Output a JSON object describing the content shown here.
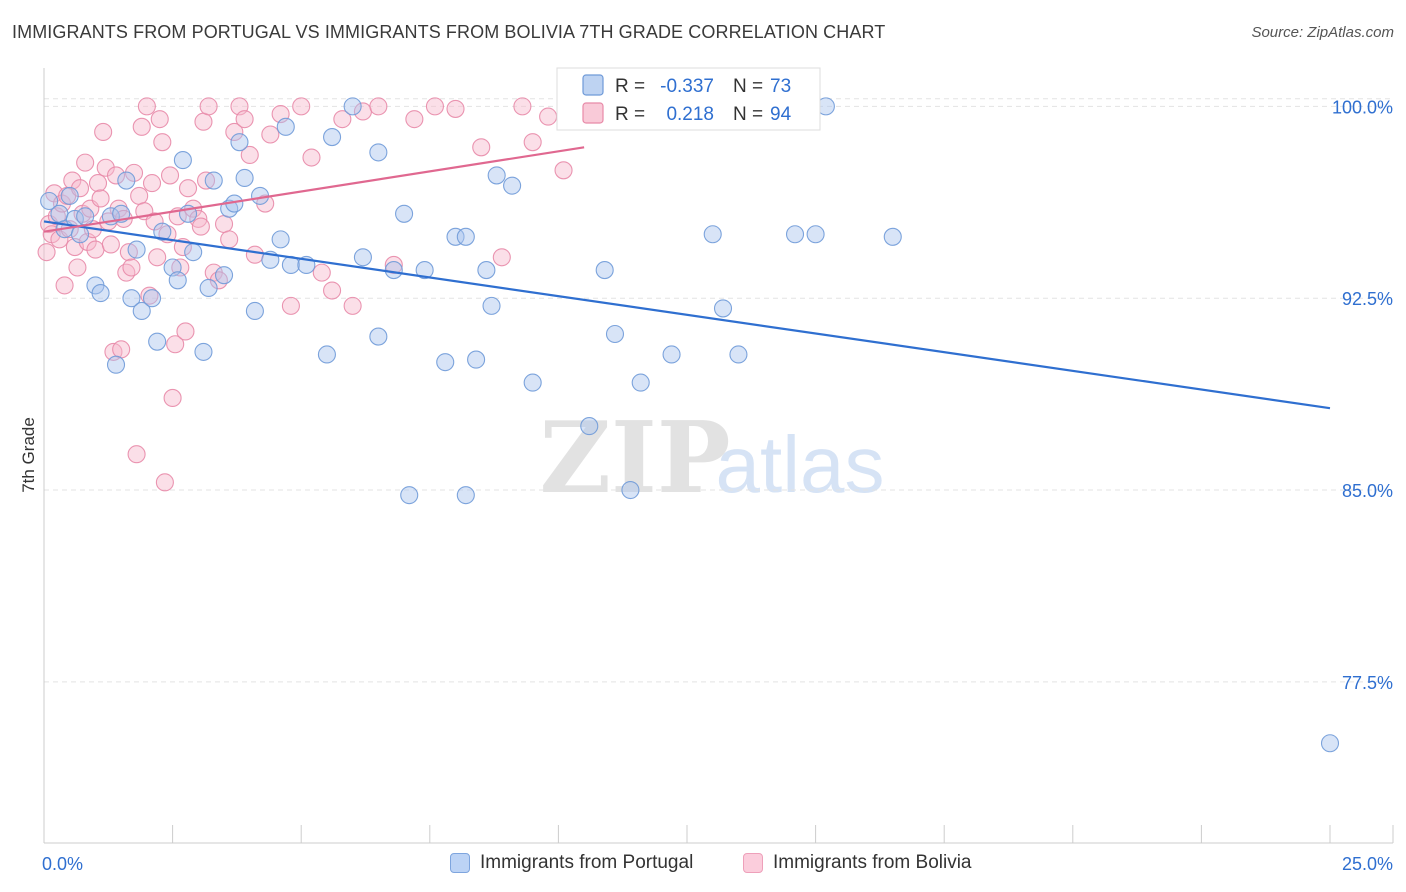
{
  "title": "IMMIGRANTS FROM PORTUGAL VS IMMIGRANTS FROM BOLIVIA 7TH GRADE CORRELATION CHART",
  "source": "Source: ZipAtlas.com",
  "watermark": {
    "zip": "ZIP",
    "atlas": "atlas"
  },
  "colors": {
    "portugal_fill": "#a8c4ee",
    "portugal_stroke": "#6f9ad8",
    "portugal_line": "#2f6fd0",
    "bolivia_fill": "#f7b8cb",
    "bolivia_stroke": "#e88aa8",
    "bolivia_line": "#e06890",
    "value_text": "#2f6fd0",
    "grid": "#e3e3e3"
  },
  "stats_legend": {
    "rows": [
      {
        "series": "portugal",
        "r_label": "R =",
        "r_value": "-0.337",
        "n_label": "N =",
        "n_value": "73"
      },
      {
        "series": "bolivia",
        "r_label": "R =",
        "r_value": "0.218",
        "n_label": "N =",
        "n_value": "94"
      }
    ]
  },
  "bottom_legend": {
    "portugal": "Immigrants from Portugal",
    "bolivia": "Immigrants from Bolivia"
  },
  "chart_data": {
    "type": "scatter",
    "title": "IMMIGRANTS FROM PORTUGAL VS IMMIGRANTS FROM BOLIVIA 7TH GRADE CORRELATION CHART",
    "xlabel": "",
    "ylabel": "7th Grade",
    "xlim": [
      0,
      25
    ],
    "ylim": [
      71.2,
      101.5
    ],
    "x_tick_labels": [
      {
        "value": 0,
        "label": "0.0%"
      },
      {
        "value": 25,
        "label": "25.0%"
      }
    ],
    "x_minor_ticks": [
      2.5,
      5,
      7.5,
      10,
      12.5,
      15,
      17.5,
      20,
      22.5,
      25
    ],
    "y_ticks": [
      {
        "value": 100,
        "label": "100.0%"
      },
      {
        "value": 92.5,
        "label": "92.5%"
      },
      {
        "value": 85,
        "label": "85.0%"
      },
      {
        "value": 77.5,
        "label": "77.5%"
      }
    ],
    "series": [
      {
        "name": "Immigrants from Portugal",
        "key": "portugal",
        "r": -0.337,
        "n": 73,
        "trend": {
          "x": [
            0,
            25
          ],
          "y": [
            95.5,
            88.2
          ]
        },
        "points": [
          [
            0.1,
            96.3
          ],
          [
            0.3,
            95.8
          ],
          [
            0.4,
            95.2
          ],
          [
            0.5,
            96.5
          ],
          [
            0.6,
            95.6
          ],
          [
            0.7,
            95.0
          ],
          [
            0.8,
            95.7
          ],
          [
            1.0,
            93.0
          ],
          [
            1.1,
            92.7
          ],
          [
            1.3,
            95.7
          ],
          [
            1.4,
            89.9
          ],
          [
            1.5,
            95.8
          ],
          [
            1.6,
            97.1
          ],
          [
            1.7,
            92.5
          ],
          [
            1.8,
            94.4
          ],
          [
            1.9,
            92.0
          ],
          [
            2.1,
            92.5
          ],
          [
            2.2,
            90.8
          ],
          [
            2.3,
            95.1
          ],
          [
            2.5,
            93.7
          ],
          [
            2.6,
            93.2
          ],
          [
            2.7,
            97.9
          ],
          [
            2.8,
            95.8
          ],
          [
            2.9,
            94.3
          ],
          [
            3.1,
            90.4
          ],
          [
            3.2,
            92.9
          ],
          [
            3.3,
            97.1
          ],
          [
            3.5,
            93.4
          ],
          [
            3.6,
            96.0
          ],
          [
            3.7,
            96.2
          ],
          [
            3.8,
            98.6
          ],
          [
            3.9,
            97.2
          ],
          [
            4.1,
            92.0
          ],
          [
            4.2,
            96.5
          ],
          [
            4.4,
            94.0
          ],
          [
            4.6,
            94.8
          ],
          [
            4.7,
            99.2
          ],
          [
            4.8,
            93.8
          ],
          [
            5.1,
            93.8
          ],
          [
            5.5,
            90.3
          ],
          [
            5.6,
            98.8
          ],
          [
            6.0,
            100.0
          ],
          [
            6.2,
            94.1
          ],
          [
            6.5,
            98.2
          ],
          [
            6.5,
            91.0
          ],
          [
            6.8,
            93.6
          ],
          [
            7.0,
            95.8
          ],
          [
            7.1,
            84.8
          ],
          [
            7.4,
            93.6
          ],
          [
            7.8,
            90.0
          ],
          [
            8.0,
            94.9
          ],
          [
            8.2,
            94.9
          ],
          [
            8.2,
            84.8
          ],
          [
            8.4,
            90.1
          ],
          [
            8.6,
            93.6
          ],
          [
            8.7,
            92.2
          ],
          [
            8.8,
            97.3
          ],
          [
            9.1,
            96.9
          ],
          [
            9.5,
            89.2
          ],
          [
            10.6,
            87.5
          ],
          [
            10.9,
            93.6
          ],
          [
            11.1,
            91.1
          ],
          [
            11.4,
            85.0
          ],
          [
            11.6,
            89.2
          ],
          [
            12.2,
            90.3
          ],
          [
            13.0,
            95.0
          ],
          [
            13.2,
            92.1
          ],
          [
            13.5,
            90.3
          ],
          [
            14.6,
            95.0
          ],
          [
            15.0,
            95.0
          ],
          [
            15.2,
            100.0
          ],
          [
            16.5,
            94.9
          ],
          [
            25.0,
            75.1
          ]
        ]
      },
      {
        "name": "Immigrants from Bolivia",
        "key": "bolivia",
        "r": 0.218,
        "n": 94,
        "trend": {
          "x": [
            0,
            10.5
          ],
          "y": [
            95.1,
            98.4
          ]
        },
        "points": [
          [
            0.05,
            94.3
          ],
          [
            0.1,
            95.4
          ],
          [
            0.15,
            95.0
          ],
          [
            0.2,
            96.6
          ],
          [
            0.25,
            95.7
          ],
          [
            0.3,
            94.8
          ],
          [
            0.35,
            96.2
          ],
          [
            0.4,
            93.0
          ],
          [
            0.45,
            96.5
          ],
          [
            0.5,
            95.2
          ],
          [
            0.55,
            97.1
          ],
          [
            0.6,
            94.5
          ],
          [
            0.65,
            93.7
          ],
          [
            0.7,
            96.8
          ],
          [
            0.75,
            95.8
          ],
          [
            0.8,
            97.8
          ],
          [
            0.85,
            94.7
          ],
          [
            0.9,
            96.0
          ],
          [
            0.95,
            95.2
          ],
          [
            1.0,
            94.4
          ],
          [
            1.05,
            97.0
          ],
          [
            1.1,
            96.4
          ],
          [
            1.15,
            99.0
          ],
          [
            1.2,
            97.6
          ],
          [
            1.25,
            95.5
          ],
          [
            1.3,
            94.6
          ],
          [
            1.35,
            90.4
          ],
          [
            1.4,
            97.3
          ],
          [
            1.45,
            96.0
          ],
          [
            1.5,
            90.5
          ],
          [
            1.55,
            95.6
          ],
          [
            1.6,
            93.5
          ],
          [
            1.65,
            94.3
          ],
          [
            1.7,
            93.7
          ],
          [
            1.75,
            97.4
          ],
          [
            1.8,
            86.4
          ],
          [
            1.85,
            96.5
          ],
          [
            1.9,
            99.2
          ],
          [
            1.95,
            95.9
          ],
          [
            2.0,
            100.0
          ],
          [
            2.05,
            92.6
          ],
          [
            2.1,
            97.0
          ],
          [
            2.15,
            95.5
          ],
          [
            2.2,
            94.1
          ],
          [
            2.25,
            99.5
          ],
          [
            2.3,
            98.6
          ],
          [
            2.35,
            85.3
          ],
          [
            2.4,
            95.0
          ],
          [
            2.45,
            97.3
          ],
          [
            2.5,
            88.6
          ],
          [
            2.55,
            90.7
          ],
          [
            2.6,
            95.7
          ],
          [
            2.65,
            93.7
          ],
          [
            2.7,
            94.5
          ],
          [
            2.75,
            91.2
          ],
          [
            2.8,
            96.8
          ],
          [
            2.9,
            96.0
          ],
          [
            3.0,
            95.6
          ],
          [
            3.05,
            95.3
          ],
          [
            3.1,
            99.4
          ],
          [
            3.15,
            97.1
          ],
          [
            3.2,
            100.0
          ],
          [
            3.3,
            93.5
          ],
          [
            3.4,
            93.2
          ],
          [
            3.5,
            95.4
          ],
          [
            3.6,
            94.8
          ],
          [
            3.7,
            99.0
          ],
          [
            3.8,
            100.0
          ],
          [
            3.9,
            99.5
          ],
          [
            4.0,
            98.1
          ],
          [
            4.1,
            94.2
          ],
          [
            4.3,
            96.2
          ],
          [
            4.4,
            98.9
          ],
          [
            4.6,
            99.7
          ],
          [
            4.8,
            92.2
          ],
          [
            5.0,
            100.0
          ],
          [
            5.2,
            98.0
          ],
          [
            5.4,
            93.5
          ],
          [
            5.6,
            92.8
          ],
          [
            5.8,
            99.5
          ],
          [
            6.0,
            92.2
          ],
          [
            6.2,
            99.8
          ],
          [
            6.5,
            100.0
          ],
          [
            6.8,
            93.8
          ],
          [
            7.2,
            99.5
          ],
          [
            7.6,
            100.0
          ],
          [
            8.0,
            99.9
          ],
          [
            8.5,
            98.4
          ],
          [
            8.9,
            94.1
          ],
          [
            9.3,
            100.0
          ],
          [
            9.5,
            98.6
          ],
          [
            9.8,
            99.6
          ],
          [
            10.1,
            97.5
          ],
          [
            10.4,
            99.9
          ]
        ]
      }
    ]
  }
}
